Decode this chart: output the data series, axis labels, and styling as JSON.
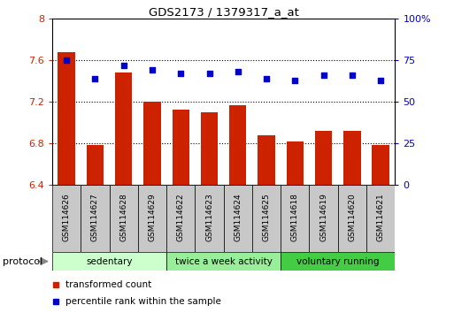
{
  "title": "GDS2173 / 1379317_a_at",
  "samples": [
    "GSM114626",
    "GSM114627",
    "GSM114628",
    "GSM114629",
    "GSM114622",
    "GSM114623",
    "GSM114624",
    "GSM114625",
    "GSM114618",
    "GSM114619",
    "GSM114620",
    "GSM114621"
  ],
  "transformed_count": [
    7.68,
    6.78,
    7.48,
    7.2,
    7.12,
    7.1,
    7.17,
    6.88,
    6.82,
    6.92,
    6.92,
    6.78
  ],
  "percentile_rank": [
    75,
    64,
    72,
    69,
    67,
    67,
    68,
    64,
    63,
    66,
    66,
    63
  ],
  "bar_color": "#cc2200",
  "dot_color": "#0000cc",
  "ylim_left": [
    6.4,
    8.0
  ],
  "ylim_right": [
    0,
    100
  ],
  "yticks_left": [
    6.4,
    6.8,
    7.2,
    7.6,
    8.0
  ],
  "yticks_right": [
    0,
    25,
    50,
    75,
    100
  ],
  "ytick_labels_left": [
    "6.4",
    "6.8",
    "7.2",
    "7.6",
    "8"
  ],
  "ytick_labels_right": [
    "0",
    "25",
    "50",
    "75",
    "100%"
  ],
  "groups": [
    {
      "label": "sedentary",
      "indices": [
        0,
        1,
        2,
        3
      ],
      "color": "#ccffcc"
    },
    {
      "label": "twice a week activity",
      "indices": [
        4,
        5,
        6,
        7
      ],
      "color": "#99ee99"
    },
    {
      "label": "voluntary running",
      "indices": [
        8,
        9,
        10,
        11
      ],
      "color": "#44cc44"
    }
  ],
  "protocol_label": "protocol",
  "legend_items": [
    {
      "label": "transformed count",
      "color": "#cc2200"
    },
    {
      "label": "percentile rank within the sample",
      "color": "#0000cc"
    }
  ],
  "grid_color": "black",
  "grid_style": "dotted",
  "grid_linewidth": 0.8,
  "bar_width": 0.6,
  "sample_box_color": "#c8c8c8",
  "figsize": [
    5.13,
    3.54
  ],
  "dpi": 100
}
